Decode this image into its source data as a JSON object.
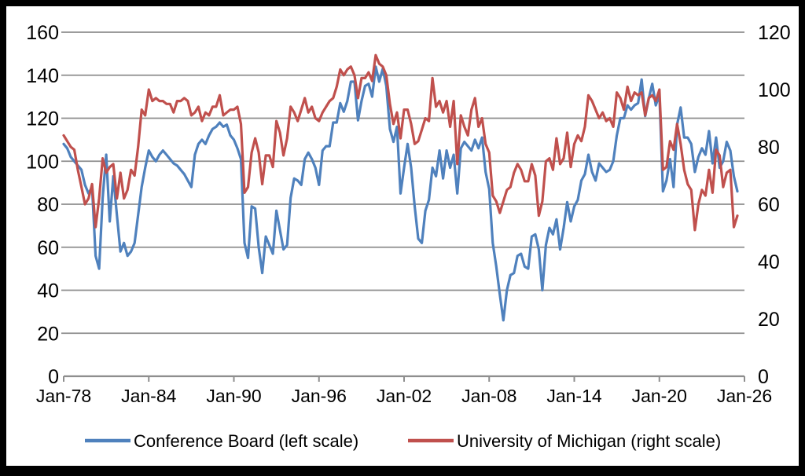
{
  "chart": {
    "background": "#ffffff",
    "frame_color": "#000000",
    "gridline_color": "#8e8e8e",
    "axis_color": "#8e8e8e",
    "label_color": "#000000",
    "legend": [
      {
        "label": "Conference Board (left scale)",
        "color": "#4f81bd"
      },
      {
        "label": "University of Michigan (right scale)",
        "color": "#c0504d"
      }
    ]
  },
  "chart_data": {
    "type": "line",
    "title": "",
    "xlabel": "",
    "ylabel_left": "",
    "ylabel_right": "",
    "grid": true,
    "legend_position": "bottom",
    "left_ylim": [
      0,
      160
    ],
    "right_ylim": [
      0,
      120
    ],
    "left_ticks": [
      0,
      20,
      40,
      60,
      80,
      100,
      120,
      140,
      160
    ],
    "right_ticks": [
      0,
      20,
      40,
      60,
      80,
      100,
      120
    ],
    "x_tick_labels": [
      "Jan-78",
      "Jan-84",
      "Jan-90",
      "Jan-96",
      "Jan-02",
      "Jan-08",
      "Jan-14",
      "Jan-20",
      "Jan-26"
    ],
    "x_tick_years": [
      1978,
      1984,
      1990,
      1996,
      2002,
      2008,
      2014,
      2020,
      2026
    ],
    "x_range_years": [
      1978,
      2026
    ],
    "x_start": 1978.0,
    "x_step_years": 0.25,
    "x_end": 2025.5,
    "series": [
      {
        "name": "Conference Board (left scale)",
        "axis": "left",
        "color": "#4f81bd",
        "values": [
          108,
          106,
          102,
          100,
          98,
          96,
          89,
          85,
          88,
          56,
          50,
          83,
          103,
          72,
          93,
          75,
          58,
          62,
          56,
          58,
          62,
          75,
          88,
          97,
          105,
          102,
          100,
          103,
          105,
          103,
          101,
          99,
          98,
          96,
          94,
          91,
          88,
          103,
          108,
          110,
          108,
          112,
          115,
          116,
          118,
          116,
          117,
          112,
          110,
          106,
          101,
          62,
          55,
          79,
          78,
          60,
          48,
          65,
          61,
          57,
          77,
          68,
          59,
          61,
          83,
          92,
          91,
          89,
          101,
          104,
          101,
          97,
          89,
          105,
          107,
          107,
          118,
          118,
          127,
          123,
          128,
          137,
          137,
          119,
          128,
          135,
          136,
          130,
          144,
          137,
          143,
          135,
          115,
          109,
          116,
          85,
          97,
          108,
          97,
          79,
          64,
          62,
          77,
          82,
          97,
          93,
          105,
          92,
          105,
          97,
          103,
          85,
          106,
          109,
          107,
          105,
          110,
          106,
          111,
          95,
          87,
          62,
          51,
          38,
          26,
          40,
          47,
          48,
          56,
          57,
          51,
          50,
          65,
          66,
          59,
          40,
          61,
          69,
          66,
          73,
          59,
          69,
          81,
          72,
          79,
          82,
          91,
          94,
          103,
          95,
          91,
          99,
          97,
          95,
          96,
          100,
          112,
          120,
          120,
          126,
          124,
          126,
          127,
          138,
          121,
          129,
          136,
          126,
          131,
          86,
          91,
          101,
          88,
          117,
          125,
          111,
          111,
          108,
          95,
          102,
          106,
          103,
          114,
          99,
          111,
          97,
          100,
          109,
          105,
          93,
          86
        ]
      },
      {
        "name": "University of Michigan (right scale)",
        "axis": "right",
        "color": "#c0504d",
        "values": [
          84,
          82,
          80,
          79,
          72,
          66,
          60,
          62,
          67,
          52,
          62,
          76,
          71,
          73,
          74,
          62,
          71,
          62,
          65,
          72,
          70,
          80,
          93,
          91,
          100,
          96,
          97,
          96,
          96,
          95,
          95,
          92,
          96,
          96,
          97,
          96,
          91,
          92,
          94,
          89,
          92,
          91,
          94,
          94,
          98,
          91,
          92,
          93,
          93,
          94,
          88,
          64,
          66,
          78,
          83,
          78,
          67,
          77,
          77,
          73,
          89,
          85,
          77,
          83,
          94,
          92,
          89,
          93,
          97,
          92,
          94,
          90,
          89,
          92,
          94,
          96,
          97,
          101,
          107,
          105,
          107,
          108,
          105,
          97,
          104,
          104,
          106,
          103,
          112,
          109,
          108,
          105,
          95,
          88,
          92,
          83,
          93,
          93,
          88,
          81,
          82,
          86,
          90,
          89,
          104,
          94,
          96,
          92,
          96,
          87,
          96,
          74,
          91,
          87,
          84,
          93,
          97,
          87,
          90,
          81,
          78,
          63,
          61,
          57,
          61,
          65,
          66,
          71,
          74,
          72,
          68,
          68,
          74,
          70,
          56,
          61,
          75,
          76,
          72,
          83,
          74,
          76,
          85,
          73,
          81,
          84,
          82,
          87,
          98,
          96,
          93,
          90,
          92,
          89,
          90,
          87,
          99,
          97,
          93,
          101,
          96,
          99,
          98,
          99,
          91,
          97,
          98,
          96,
          100,
          72,
          73,
          82,
          79,
          88,
          81,
          72,
          67,
          65,
          51,
          60,
          65,
          63,
          72,
          64,
          79,
          77,
          66,
          71,
          72,
          52,
          56
        ]
      }
    ]
  }
}
